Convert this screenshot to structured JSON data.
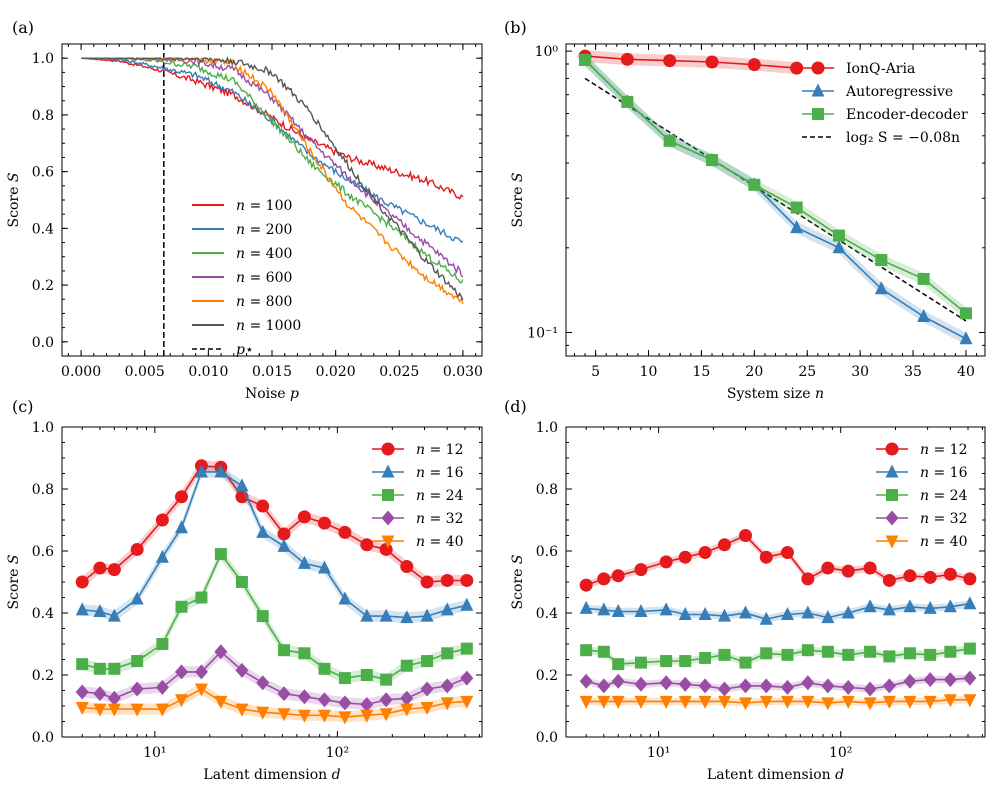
{
  "colors": {
    "red": "#e41a1c",
    "blue": "#377eb8",
    "green": "#4daf4a",
    "purple": "#984ea3",
    "orange": "#ff7f00",
    "gray": "#555555"
  },
  "chart_data": [
    {
      "id": "a",
      "panel_label": "(a)",
      "type": "line",
      "xlabel": "Noise p",
      "ylabel": "Score S",
      "xscale": "linear",
      "xlim": [
        -0.0015,
        0.0315
      ],
      "ylim": [
        -0.05,
        1.05
      ],
      "xticks": [
        0,
        0.005,
        0.01,
        0.015,
        0.02,
        0.025,
        0.03
      ],
      "xtick_labels": [
        "0.000",
        "0.005",
        "0.010",
        "0.015",
        "0.020",
        "0.025",
        "0.030"
      ],
      "yticks": [
        0,
        0.2,
        0.4,
        0.6,
        0.8,
        1.0
      ],
      "ytick_labels": [
        "0.0",
        "0.2",
        "0.4",
        "0.6",
        "0.8",
        "1.0"
      ],
      "legend_position": "lower-middle",
      "vline": {
        "x": 0.0065,
        "label": "p⋆"
      },
      "series": [
        {
          "label": "n = 100",
          "color": "red",
          "x": [
            0,
            0.003,
            0.006,
            0.009,
            0.012,
            0.015,
            0.018,
            0.021,
            0.024,
            0.027,
            0.03
          ],
          "y": [
            1.0,
            0.99,
            0.96,
            0.92,
            0.87,
            0.79,
            0.71,
            0.65,
            0.61,
            0.57,
            0.51
          ]
        },
        {
          "label": "n = 200",
          "color": "blue",
          "x": [
            0,
            0.003,
            0.006,
            0.009,
            0.012,
            0.015,
            0.018,
            0.021,
            0.024,
            0.027,
            0.03
          ],
          "y": [
            1.0,
            0.995,
            0.97,
            0.94,
            0.88,
            0.78,
            0.66,
            0.57,
            0.49,
            0.42,
            0.35
          ]
        },
        {
          "label": "n = 400",
          "color": "green",
          "x": [
            0,
            0.003,
            0.006,
            0.009,
            0.012,
            0.015,
            0.018,
            0.021,
            0.024,
            0.027,
            0.03
          ],
          "y": [
            1.0,
            1.0,
            0.99,
            0.97,
            0.92,
            0.78,
            0.63,
            0.52,
            0.42,
            0.31,
            0.21
          ]
        },
        {
          "label": "n = 600",
          "color": "purple",
          "x": [
            0,
            0.003,
            0.006,
            0.009,
            0.012,
            0.015,
            0.018,
            0.021,
            0.024,
            0.027,
            0.03
          ],
          "y": [
            1.0,
            1.0,
            1.0,
            0.99,
            0.96,
            0.86,
            0.71,
            0.58,
            0.46,
            0.35,
            0.24
          ]
        },
        {
          "label": "n = 800",
          "color": "orange",
          "x": [
            0,
            0.003,
            0.006,
            0.009,
            0.012,
            0.015,
            0.018,
            0.021,
            0.024,
            0.027,
            0.03
          ],
          "y": [
            1.0,
            1.0,
            1.0,
            1.0,
            0.98,
            0.88,
            0.67,
            0.48,
            0.35,
            0.23,
            0.14
          ]
        },
        {
          "label": "n = 1000",
          "color": "gray",
          "x": [
            0,
            0.003,
            0.006,
            0.009,
            0.012,
            0.015,
            0.018,
            0.021,
            0.024,
            0.027,
            0.03
          ],
          "y": [
            1.0,
            1.0,
            1.0,
            1.0,
            0.99,
            0.95,
            0.81,
            0.62,
            0.45,
            0.29,
            0.15
          ]
        }
      ]
    },
    {
      "id": "b",
      "panel_label": "(b)",
      "type": "line",
      "xlabel": "System size n",
      "ylabel": "Score S",
      "xscale": "linear",
      "yscale": "log",
      "xlim": [
        2.2,
        41.8
      ],
      "ylim": [
        0.0825,
        1.06
      ],
      "xticks": [
        5,
        10,
        15,
        20,
        25,
        30,
        35,
        40
      ],
      "xtick_labels": [
        "5",
        "10",
        "15",
        "20",
        "25",
        "30",
        "35",
        "40"
      ],
      "yticks": [
        0.1,
        1.0
      ],
      "ytick_labels": [
        "10⁻¹",
        "10⁰"
      ],
      "legend_position": "top-right",
      "series": [
        {
          "label": "IonQ-Aria",
          "color": "red",
          "marker": "circle",
          "x": [
            4,
            8,
            12,
            16,
            20,
            24
          ],
          "y": [
            0.96,
            0.935,
            0.925,
            0.915,
            0.895,
            0.87
          ]
        },
        {
          "label": "Autoregressive",
          "color": "blue",
          "marker": "triangle",
          "x": [
            4,
            8,
            12,
            16,
            20,
            24,
            28,
            32,
            36,
            40
          ],
          "y": [
            0.93,
            0.66,
            0.48,
            0.41,
            0.335,
            0.236,
            0.2,
            0.143,
            0.114,
            0.095
          ]
        },
        {
          "label": "Encoder-decoder",
          "color": "green",
          "marker": "square",
          "x": [
            4,
            8,
            12,
            16,
            20,
            24,
            28,
            32,
            36,
            40
          ],
          "y": [
            0.93,
            0.66,
            0.48,
            0.41,
            0.335,
            0.278,
            0.221,
            0.181,
            0.155,
            0.117
          ]
        }
      ],
      "fit_line": {
        "label": "log₂ S = −0.08n",
        "x": [
          4,
          40
        ],
        "y": [
          0.7998,
          0.1099
        ]
      }
    },
    {
      "id": "c",
      "panel_label": "(c)",
      "type": "line",
      "xlabel": "Latent dimension d",
      "ylabel": "Score S",
      "xscale": "log",
      "xlim": [
        3.1,
        620
      ],
      "ylim": [
        0,
        1.0
      ],
      "xticks": [
        10,
        100
      ],
      "xtick_labels": [
        "10¹",
        "10²"
      ],
      "yticks": [
        0,
        0.2,
        0.4,
        0.6,
        0.8,
        1.0
      ],
      "ytick_labels": [
        "0.0",
        "0.2",
        "0.4",
        "0.6",
        "0.8",
        "1.0"
      ],
      "legend_position": "top-right",
      "x": [
        4,
        5,
        6,
        8,
        11,
        14,
        18,
        23,
        30,
        39,
        51,
        66,
        85,
        110,
        145,
        185,
        240,
        310,
        400,
        512
      ],
      "series": [
        {
          "label": "n = 12",
          "color": "red",
          "marker": "circle",
          "y": [
            0.5,
            0.545,
            0.54,
            0.605,
            0.7,
            0.775,
            0.875,
            0.87,
            0.775,
            0.745,
            0.655,
            0.71,
            0.69,
            0.66,
            0.62,
            0.605,
            0.55,
            0.5,
            0.505,
            0.505
          ]
        },
        {
          "label": "n = 16",
          "color": "blue",
          "marker": "triangle",
          "y": [
            0.41,
            0.405,
            0.39,
            0.445,
            0.58,
            0.675,
            0.855,
            0.855,
            0.81,
            0.66,
            0.615,
            0.56,
            0.545,
            0.445,
            0.39,
            0.39,
            0.385,
            0.39,
            0.41,
            0.425
          ]
        },
        {
          "label": "n = 24",
          "color": "green",
          "marker": "square",
          "y": [
            0.235,
            0.22,
            0.22,
            0.245,
            0.3,
            0.42,
            0.45,
            0.59,
            0.5,
            0.39,
            0.28,
            0.27,
            0.22,
            0.19,
            0.2,
            0.185,
            0.23,
            0.245,
            0.27,
            0.285
          ]
        },
        {
          "label": "n = 32",
          "color": "purple",
          "marker": "diamond",
          "y": [
            0.145,
            0.14,
            0.125,
            0.155,
            0.16,
            0.21,
            0.21,
            0.275,
            0.215,
            0.175,
            0.14,
            0.13,
            0.12,
            0.11,
            0.105,
            0.12,
            0.125,
            0.155,
            0.165,
            0.19
          ]
        },
        {
          "label": "n = 40",
          "color": "orange",
          "marker": "triangle_down",
          "y": [
            0.095,
            0.09,
            0.09,
            0.09,
            0.09,
            0.12,
            0.155,
            0.115,
            0.09,
            0.08,
            0.075,
            0.07,
            0.07,
            0.065,
            0.07,
            0.075,
            0.09,
            0.095,
            0.11,
            0.115
          ]
        }
      ]
    },
    {
      "id": "d",
      "panel_label": "(d)",
      "type": "line",
      "xlabel": "Latent dimension d",
      "ylabel": "Score S",
      "xscale": "log",
      "xlim": [
        3.1,
        620
      ],
      "ylim": [
        0,
        1.0
      ],
      "xticks": [
        10,
        100
      ],
      "xtick_labels": [
        "10¹",
        "10²"
      ],
      "yticks": [
        0,
        0.2,
        0.4,
        0.6,
        0.8,
        1.0
      ],
      "ytick_labels": [
        "0.0",
        "0.2",
        "0.4",
        "0.6",
        "0.8",
        "1.0"
      ],
      "legend_position": "top-right",
      "x": [
        4,
        5,
        6,
        8,
        11,
        14,
        18,
        23,
        30,
        39,
        51,
        66,
        85,
        110,
        145,
        185,
        240,
        310,
        400,
        512
      ],
      "series": [
        {
          "label": "n = 12",
          "color": "red",
          "marker": "circle",
          "y": [
            0.49,
            0.51,
            0.52,
            0.54,
            0.565,
            0.58,
            0.595,
            0.62,
            0.65,
            0.58,
            0.595,
            0.51,
            0.545,
            0.535,
            0.545,
            0.505,
            0.52,
            0.515,
            0.525,
            0.51
          ]
        },
        {
          "label": "n = 16",
          "color": "blue",
          "marker": "triangle",
          "y": [
            0.415,
            0.41,
            0.405,
            0.405,
            0.41,
            0.395,
            0.395,
            0.39,
            0.4,
            0.38,
            0.395,
            0.4,
            0.385,
            0.4,
            0.42,
            0.41,
            0.42,
            0.415,
            0.42,
            0.43
          ]
        },
        {
          "label": "n = 24",
          "color": "green",
          "marker": "square",
          "y": [
            0.28,
            0.275,
            0.235,
            0.24,
            0.245,
            0.245,
            0.255,
            0.265,
            0.24,
            0.27,
            0.265,
            0.28,
            0.275,
            0.265,
            0.275,
            0.26,
            0.27,
            0.265,
            0.275,
            0.285
          ]
        },
        {
          "label": "n = 32",
          "color": "purple",
          "marker": "diamond",
          "y": [
            0.18,
            0.165,
            0.18,
            0.17,
            0.175,
            0.17,
            0.165,
            0.155,
            0.165,
            0.165,
            0.16,
            0.175,
            0.165,
            0.16,
            0.155,
            0.165,
            0.18,
            0.185,
            0.185,
            0.19
          ]
        },
        {
          "label": "n = 40",
          "color": "orange",
          "marker": "triangle_down",
          "y": [
            0.115,
            0.115,
            0.115,
            0.115,
            0.115,
            0.115,
            0.115,
            0.115,
            0.11,
            0.115,
            0.115,
            0.115,
            0.11,
            0.115,
            0.11,
            0.115,
            0.115,
            0.115,
            0.12,
            0.12
          ]
        }
      ]
    }
  ]
}
